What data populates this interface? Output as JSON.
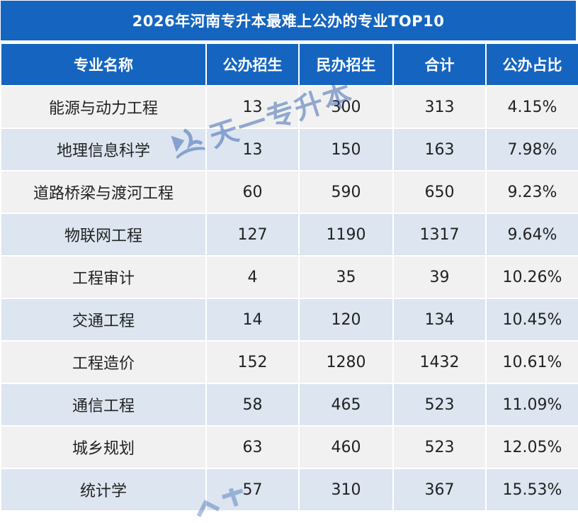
{
  "title": "2026年河南专升本最难上公办的专业TOP10",
  "headers": [
    "专业名称",
    "公办招生",
    "民办招生",
    "合计",
    "公办占比"
  ],
  "rows": [
    {
      "major": "能源与动力工程",
      "public": "13",
      "private": "300",
      "total": "313",
      "ratio": "4.15%"
    },
    {
      "major": "地理信息科学",
      "public": "13",
      "private": "150",
      "total": "163",
      "ratio": "7.98%"
    },
    {
      "major": "道路桥梁与渡河工程",
      "public": "60",
      "private": "590",
      "total": "650",
      "ratio": "9.23%"
    },
    {
      "major": "物联网工程",
      "public": "127",
      "private": "1190",
      "total": "1317",
      "ratio": "9.64%"
    },
    {
      "major": "工程审计",
      "public": "4",
      "private": "35",
      "total": "39",
      "ratio": "10.26%"
    },
    {
      "major": "交通工程",
      "public": "14",
      "private": "120",
      "total": "134",
      "ratio": "10.45%"
    },
    {
      "major": "工程造价",
      "public": "152",
      "private": "1280",
      "total": "1432",
      "ratio": "10.61%"
    },
    {
      "major": "通信工程",
      "public": "58",
      "private": "465",
      "total": "523",
      "ratio": "11.09%"
    },
    {
      "major": "城乡规划",
      "public": "63",
      "private": "460",
      "total": "523",
      "ratio": "12.05%"
    },
    {
      "major": "统计学",
      "public": "57",
      "private": "310",
      "total": "367",
      "ratio": "15.53%"
    }
  ],
  "watermark": {
    "text": "天一专升本",
    "logo_icon": "book-logo-icon"
  },
  "colors": {
    "header_bg": "#1565c0",
    "row_odd": "#f1f1f1",
    "row_even": "#dce5f0",
    "ratio_text": "#e8242b"
  }
}
